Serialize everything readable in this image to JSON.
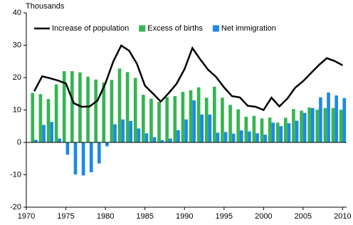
{
  "chart_data": {
    "type": "combo",
    "y_label": "Thousands",
    "x": [
      1971,
      1972,
      1973,
      1974,
      1975,
      1976,
      1977,
      1978,
      1979,
      1980,
      1981,
      1982,
      1983,
      1984,
      1985,
      1986,
      1987,
      1988,
      1989,
      1990,
      1991,
      1992,
      1993,
      1994,
      1995,
      1996,
      1997,
      1998,
      1999,
      2000,
      2001,
      2002,
      2003,
      2004,
      2005,
      2006,
      2007,
      2008,
      2009,
      2010
    ],
    "series": [
      {
        "name": "Increase of population",
        "type": "line",
        "color": "#000000",
        "values": [
          15.8,
          20.4,
          19.8,
          19.1,
          18.2,
          12.1,
          11.0,
          11.1,
          12.9,
          18.2,
          25.0,
          29.9,
          28.3,
          24.2,
          17.5,
          15.1,
          12.6,
          15.2,
          18.1,
          22.6,
          29.1,
          25.6,
          22.4,
          20.2,
          17.0,
          14.3,
          13.9,
          11.3,
          11.0,
          10.0,
          13.8,
          11.1,
          13.5,
          16.9,
          18.9,
          21.4,
          23.9,
          26.0,
          25.1,
          23.8
        ]
      },
      {
        "name": "Excess of births",
        "type": "bar",
        "color": "#35b552",
        "values": [
          15.3,
          14.9,
          13.4,
          17.9,
          22.0,
          22.0,
          21.6,
          20.3,
          19.4,
          18.5,
          19.3,
          22.8,
          21.7,
          19.9,
          14.7,
          13.5,
          12.5,
          14.0,
          14.3,
          15.6,
          16.1,
          17.0,
          13.8,
          17.2,
          13.8,
          11.6,
          10.2,
          7.9,
          8.2,
          7.4,
          7.7,
          6.1,
          7.6,
          10.3,
          9.8,
          10.8,
          10.1,
          10.6,
          10.6,
          10.1
        ]
      },
      {
        "name": "Net immigration",
        "type": "bar",
        "color": "#1e88e8",
        "values": [
          0.8,
          5.4,
          6.3,
          1.2,
          -3.8,
          -9.9,
          -10.2,
          -9.2,
          -6.5,
          -1.2,
          5.6,
          7.1,
          6.6,
          4.3,
          2.8,
          1.6,
          0.7,
          1.2,
          3.8,
          7.1,
          13.0,
          8.6,
          8.6,
          3.0,
          3.2,
          2.7,
          3.7,
          3.4,
          2.8,
          2.4,
          6.1,
          5.0,
          5.9,
          6.7,
          9.1,
          10.6,
          13.9,
          15.4,
          14.5,
          13.7
        ]
      }
    ],
    "xlim": [
      1970,
      2010.5
    ],
    "xticks": [
      1970,
      1975,
      1980,
      1985,
      1990,
      1995,
      2000,
      2005,
      2010
    ],
    "ylim": [
      -20,
      40
    ],
    "yticks": [
      -20,
      -10,
      0,
      10,
      20,
      30,
      40
    ],
    "legend": "top"
  }
}
